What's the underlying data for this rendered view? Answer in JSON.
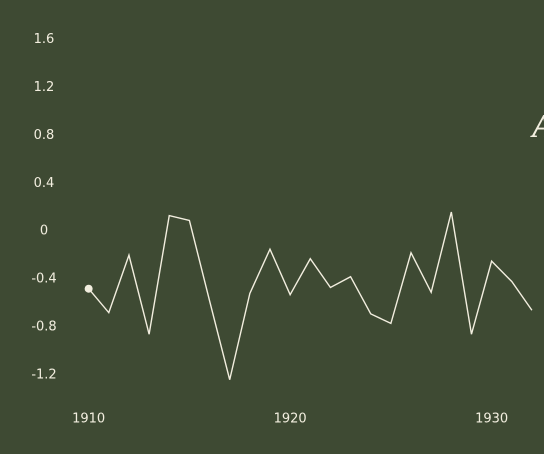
{
  "chart_data": {
    "type": "line",
    "annotation": "A",
    "x": [
      1910,
      1911,
      1912,
      1913,
      1914,
      1915,
      1916,
      1917,
      1918,
      1919,
      1920,
      1921,
      1922,
      1923,
      1924,
      1925,
      1926,
      1927,
      1928,
      1929,
      1930,
      1931,
      1932
    ],
    "series": [
      {
        "color": "#f2eedf",
        "values": [
          -0.48,
          -0.68,
          -0.2,
          -0.86,
          0.13,
          0.09,
          -0.58,
          -1.24,
          -0.52,
          -0.15,
          -0.53,
          -0.23,
          -0.47,
          -0.38,
          -0.69,
          -0.77,
          -0.18,
          -0.51,
          0.16,
          -0.86,
          -0.25,
          -0.42,
          -0.66
        ]
      }
    ],
    "xlim": [
      1905.6,
      1932.6
    ],
    "xticks": [
      1910,
      1920,
      1930
    ],
    "ylim": [
      -1.86,
      1.93
    ],
    "yticks": [
      1.6,
      1.2,
      0.8,
      0.4,
      0,
      -0.4,
      -0.8,
      -1.2
    ],
    "marker_first": true,
    "grid": false
  }
}
